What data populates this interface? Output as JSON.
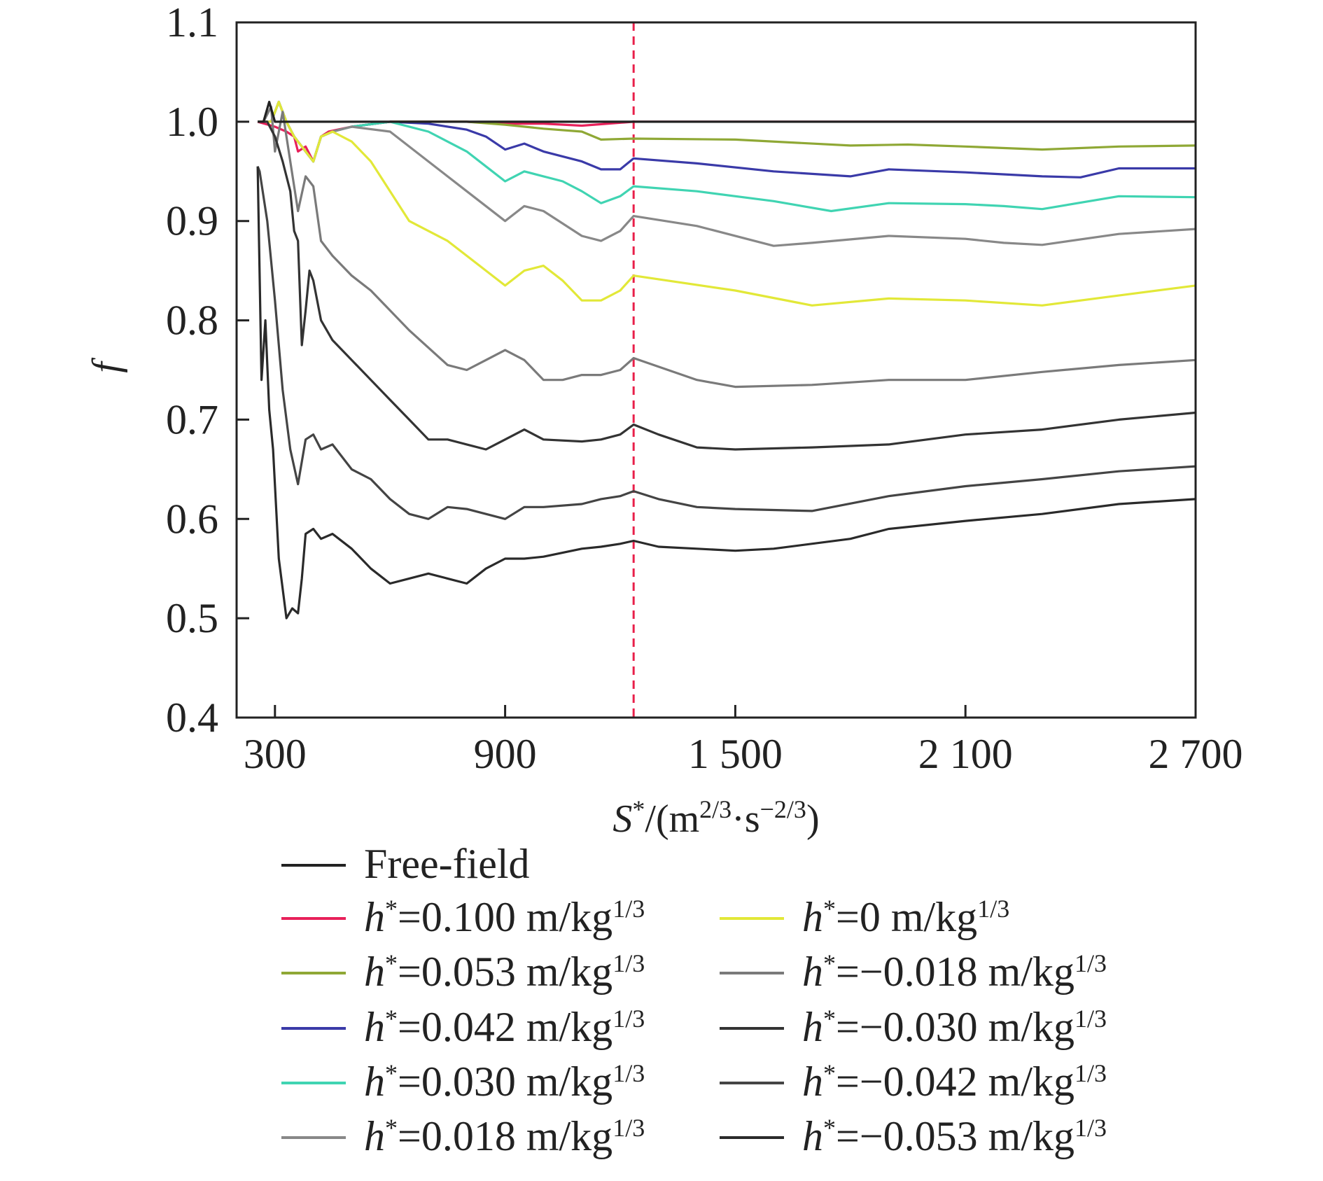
{
  "chart_data": {
    "type": "line",
    "title": "",
    "xlabel": {
      "main": "S",
      "sup1": "*",
      "unit_open": "/(m",
      "sup2": "2/3",
      "mid": "·s",
      "sup3": "−2/3",
      "close": ")"
    },
    "ylabel": "f",
    "xlim": [
      200,
      2700
    ],
    "ylim": [
      0.4,
      1.1
    ],
    "x_ticks": [
      300,
      900,
      1500,
      2100,
      2700
    ],
    "x_tick_labels": [
      "300",
      "900",
      "1 500",
      "2 100",
      "2 700"
    ],
    "y_ticks": [
      0.4,
      0.5,
      0.6,
      0.7,
      0.8,
      0.9,
      1.0,
      1.1
    ],
    "y_tick_labels": [
      "0.4",
      "0.5",
      "0.6",
      "0.7",
      "0.8",
      "0.9",
      "1.0",
      "1.1"
    ],
    "vline": {
      "x": 1235,
      "color": "#e8204a"
    },
    "legend_prefix": "h",
    "legend_star": "*",
    "legend_unit": " m/kg",
    "legend_unit_sup": "1/3",
    "series": [
      {
        "name": "Free-field",
        "color": "#222222",
        "x": [
          255,
          270,
          285,
          300,
          2700
        ],
        "y": [
          1.0,
          1.0,
          1.02,
          1.0,
          1.0
        ]
      },
      {
        "name": "=0.100",
        "color": "#e8205a",
        "x": [
          255,
          300,
          330,
          350,
          360,
          380,
          400,
          420,
          440,
          500,
          600,
          700,
          800,
          900,
          1000,
          1100,
          1235,
          1500,
          2000,
          2700
        ],
        "y": [
          1.0,
          0.995,
          0.99,
          0.985,
          0.97,
          0.975,
          0.96,
          0.985,
          0.99,
          0.995,
          1.0,
          1.0,
          1.0,
          0.998,
          0.998,
          0.996,
          1.0,
          1.0,
          1.0,
          1.0
        ]
      },
      {
        "name": "=0.053",
        "color": "#8fa835",
        "x": [
          255,
          290,
          310,
          330,
          350,
          370,
          380,
          400,
          420,
          450,
          500,
          600,
          700,
          800,
          900,
          1000,
          1100,
          1150,
          1235,
          1500,
          1800,
          1950,
          2100,
          2300,
          2500,
          2700
        ],
        "y": [
          1.0,
          1.0,
          1.02,
          1.0,
          0.985,
          0.975,
          0.97,
          0.96,
          0.985,
          0.99,
          0.995,
          1.0,
          1.0,
          1.0,
          0.997,
          0.993,
          0.99,
          0.982,
          0.983,
          0.982,
          0.976,
          0.977,
          0.975,
          0.972,
          0.975,
          0.976
        ]
      },
      {
        "name": "=0.042",
        "color": "#3a3aa8",
        "x": [
          255,
          290,
          310,
          330,
          350,
          370,
          380,
          400,
          420,
          450,
          500,
          600,
          700,
          800,
          850,
          900,
          950,
          1000,
          1100,
          1150,
          1200,
          1235,
          1400,
          1600,
          1800,
          1900,
          2100,
          2300,
          2400,
          2500,
          2700
        ],
        "y": [
          1.0,
          1.0,
          1.02,
          1.0,
          0.985,
          0.975,
          0.97,
          0.96,
          0.985,
          0.99,
          0.995,
          1.0,
          0.998,
          0.992,
          0.985,
          0.972,
          0.978,
          0.97,
          0.96,
          0.952,
          0.952,
          0.963,
          0.958,
          0.95,
          0.945,
          0.952,
          0.949,
          0.945,
          0.944,
          0.953,
          0.953
        ]
      },
      {
        "name": "=0.030",
        "color": "#40d4b2",
        "x": [
          255,
          290,
          310,
          330,
          350,
          370,
          380,
          400,
          420,
          450,
          500,
          600,
          700,
          800,
          850,
          900,
          950,
          1000,
          1050,
          1100,
          1150,
          1200,
          1235,
          1400,
          1600,
          1750,
          1900,
          2100,
          2200,
          2300,
          2500,
          2700
        ],
        "y": [
          1.0,
          1.0,
          1.02,
          1.0,
          0.985,
          0.975,
          0.97,
          0.96,
          0.985,
          0.99,
          0.995,
          1.0,
          0.99,
          0.97,
          0.955,
          0.94,
          0.95,
          0.945,
          0.94,
          0.93,
          0.918,
          0.925,
          0.935,
          0.93,
          0.92,
          0.91,
          0.918,
          0.917,
          0.915,
          0.912,
          0.925,
          0.924
        ]
      },
      {
        "name": "=0.018",
        "color": "#888888",
        "x": [
          255,
          290,
          310,
          330,
          350,
          370,
          380,
          400,
          420,
          450,
          500,
          600,
          700,
          800,
          900,
          950,
          1000,
          1100,
          1150,
          1200,
          1235,
          1400,
          1600,
          1700,
          1900,
          2100,
          2200,
          2300,
          2500,
          2700
        ],
        "y": [
          1.0,
          1.0,
          1.02,
          1.0,
          0.985,
          0.975,
          0.97,
          0.96,
          0.985,
          0.99,
          0.995,
          0.99,
          0.96,
          0.93,
          0.9,
          0.915,
          0.91,
          0.885,
          0.88,
          0.89,
          0.905,
          0.895,
          0.875,
          0.878,
          0.885,
          0.882,
          0.878,
          0.876,
          0.887,
          0.892
        ]
      },
      {
        "name": "=0",
        "color": "#e2e838",
        "x": [
          255,
          290,
          310,
          330,
          350,
          370,
          380,
          400,
          420,
          450,
          500,
          550,
          650,
          750,
          850,
          900,
          950,
          1000,
          1050,
          1100,
          1150,
          1200,
          1235,
          1500,
          1700,
          1900,
          2100,
          2300,
          2500,
          2700
        ],
        "y": [
          1.0,
          1.0,
          1.02,
          1.0,
          0.985,
          0.975,
          0.97,
          0.96,
          0.985,
          0.99,
          0.98,
          0.96,
          0.9,
          0.88,
          0.85,
          0.835,
          0.85,
          0.855,
          0.84,
          0.82,
          0.82,
          0.83,
          0.845,
          0.83,
          0.815,
          0.822,
          0.82,
          0.815,
          0.825,
          0.835
        ]
      },
      {
        "name": "=−0.018",
        "color": "#7a7a7a",
        "x": [
          255,
          270,
          290,
          300,
          320,
          340,
          360,
          380,
          400,
          420,
          450,
          500,
          550,
          650,
          750,
          800,
          850,
          900,
          950,
          1000,
          1050,
          1100,
          1150,
          1200,
          1235,
          1400,
          1500,
          1700,
          1900,
          2100,
          2300,
          2500,
          2700
        ],
        "y": [
          1.0,
          1.0,
          1.015,
          0.97,
          1.01,
          0.96,
          0.91,
          0.945,
          0.935,
          0.88,
          0.865,
          0.845,
          0.83,
          0.79,
          0.755,
          0.75,
          0.76,
          0.77,
          0.76,
          0.74,
          0.74,
          0.745,
          0.745,
          0.75,
          0.762,
          0.74,
          0.733,
          0.735,
          0.74,
          0.74,
          0.748,
          0.755,
          0.76
        ]
      },
      {
        "name": "=−0.030",
        "color": "#333333",
        "x": [
          255,
          280,
          300,
          320,
          340,
          350,
          360,
          370,
          380,
          390,
          400,
          420,
          450,
          500,
          550,
          600,
          650,
          700,
          750,
          800,
          850,
          900,
          950,
          1000,
          1100,
          1150,
          1200,
          1235,
          1300,
          1400,
          1500,
          1700,
          1900,
          2100,
          2300,
          2500,
          2700
        ],
        "y": [
          1.0,
          1.0,
          0.985,
          0.96,
          0.93,
          0.89,
          0.88,
          0.775,
          0.81,
          0.85,
          0.84,
          0.8,
          0.78,
          0.76,
          0.74,
          0.72,
          0.7,
          0.68,
          0.68,
          0.675,
          0.67,
          0.68,
          0.69,
          0.68,
          0.678,
          0.68,
          0.685,
          0.695,
          0.685,
          0.672,
          0.67,
          0.672,
          0.675,
          0.685,
          0.69,
          0.7,
          0.707
        ]
      },
      {
        "name": "=−0.042",
        "color": "#444444",
        "x": [
          255,
          260,
          280,
          300,
          320,
          340,
          360,
          380,
          400,
          420,
          450,
          500,
          550,
          600,
          650,
          700,
          750,
          800,
          850,
          900,
          950,
          1000,
          1100,
          1150,
          1200,
          1235,
          1300,
          1400,
          1500,
          1700,
          1900,
          2100,
          2300,
          2500,
          2700
        ],
        "y": [
          0.955,
          0.95,
          0.9,
          0.82,
          0.73,
          0.67,
          0.635,
          0.68,
          0.685,
          0.67,
          0.675,
          0.65,
          0.64,
          0.62,
          0.605,
          0.6,
          0.612,
          0.61,
          0.605,
          0.6,
          0.612,
          0.612,
          0.615,
          0.62,
          0.623,
          0.628,
          0.62,
          0.612,
          0.61,
          0.608,
          0.623,
          0.633,
          0.64,
          0.648,
          0.653
        ]
      },
      {
        "name": "=−0.053",
        "color": "#2a2a2a",
        "x": [
          255,
          265,
          275,
          285,
          295,
          310,
          330,
          345,
          360,
          370,
          380,
          400,
          420,
          450,
          500,
          550,
          600,
          650,
          700,
          750,
          800,
          850,
          900,
          950,
          1000,
          1100,
          1150,
          1200,
          1235,
          1300,
          1400,
          1500,
          1600,
          1800,
          1900,
          2100,
          2300,
          2500,
          2700
        ],
        "y": [
          0.955,
          0.74,
          0.8,
          0.71,
          0.67,
          0.56,
          0.5,
          0.51,
          0.505,
          0.54,
          0.585,
          0.59,
          0.58,
          0.585,
          0.57,
          0.55,
          0.535,
          0.54,
          0.545,
          0.54,
          0.535,
          0.55,
          0.56,
          0.56,
          0.562,
          0.57,
          0.572,
          0.575,
          0.578,
          0.572,
          0.57,
          0.568,
          0.57,
          0.58,
          0.59,
          0.598,
          0.605,
          0.615,
          0.62
        ]
      }
    ]
  }
}
